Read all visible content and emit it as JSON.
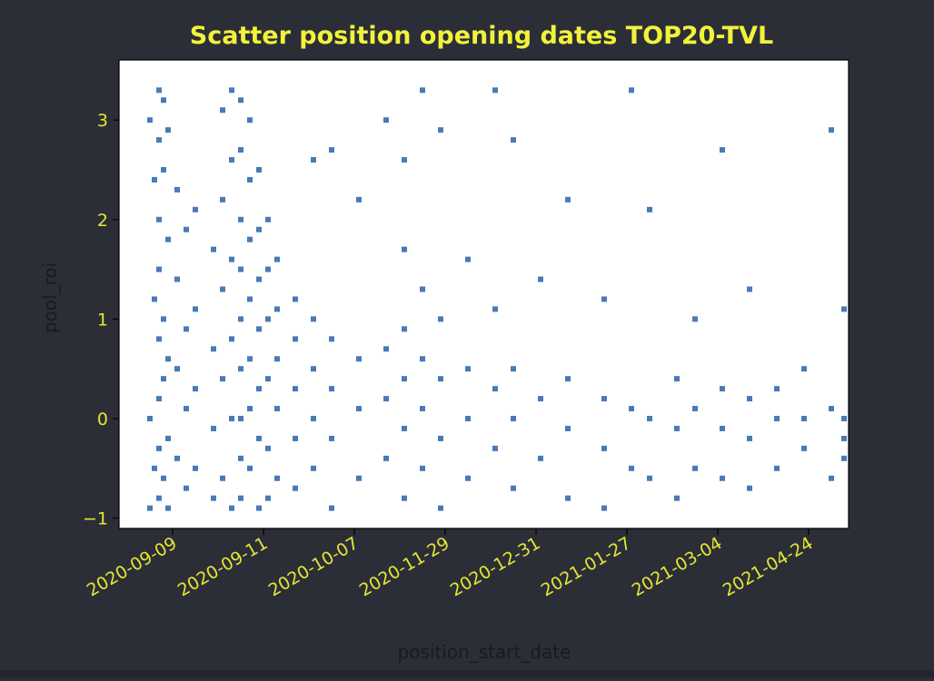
{
  "chart_data": {
    "type": "scatter",
    "title": "Scatter position opening dates TOP20-TVL",
    "xlabel": "position_start_date",
    "ylabel": "pool_roi",
    "ylim": [
      -1.1,
      3.45
    ],
    "yticks": [
      -1,
      0,
      1,
      2,
      3
    ],
    "x_tick_labels": [
      "2020-09-09",
      "2020-09-11",
      "2020-10-07",
      "2020-11-29",
      "2020-12-31",
      "2021-01-27",
      "2021-03-04",
      "2021-04-24"
    ],
    "x_scale": "categorical date ticks (irregular spacing)",
    "grid": false,
    "legend": "none",
    "marker": "square",
    "colors": {
      "background": "#2b2e37",
      "plot_area": "#ffffff",
      "points": "#4a7ab5",
      "title": "#f2f23a",
      "tick_labels": "#e6e632",
      "axis_labels": "#1a1a1a"
    },
    "points": [
      [
        0.0,
        0.0
      ],
      [
        0.0,
        3.0
      ],
      [
        0.0,
        -0.9
      ],
      [
        0.05,
        2.4
      ],
      [
        0.05,
        1.2
      ],
      [
        0.05,
        -0.5
      ],
      [
        0.1,
        3.3
      ],
      [
        0.1,
        2.8
      ],
      [
        0.1,
        2.0
      ],
      [
        0.1,
        1.5
      ],
      [
        0.1,
        0.8
      ],
      [
        0.1,
        0.2
      ],
      [
        0.1,
        -0.3
      ],
      [
        0.1,
        -0.8
      ],
      [
        0.15,
        3.2
      ],
      [
        0.15,
        2.5
      ],
      [
        0.15,
        1.0
      ],
      [
        0.15,
        0.4
      ],
      [
        0.15,
        -0.6
      ],
      [
        0.2,
        2.9
      ],
      [
        0.2,
        1.8
      ],
      [
        0.2,
        0.6
      ],
      [
        0.2,
        -0.2
      ],
      [
        0.2,
        -0.9
      ],
      [
        0.3,
        2.3
      ],
      [
        0.3,
        1.4
      ],
      [
        0.3,
        0.5
      ],
      [
        0.3,
        -0.4
      ],
      [
        0.4,
        1.9
      ],
      [
        0.4,
        0.9
      ],
      [
        0.4,
        0.1
      ],
      [
        0.4,
        -0.7
      ],
      [
        0.5,
        2.1
      ],
      [
        0.5,
        1.1
      ],
      [
        0.5,
        0.3
      ],
      [
        0.5,
        -0.5
      ],
      [
        0.7,
        1.7
      ],
      [
        0.7,
        0.7
      ],
      [
        0.7,
        -0.1
      ],
      [
        0.7,
        -0.8
      ],
      [
        0.8,
        3.1
      ],
      [
        0.8,
        2.2
      ],
      [
        0.8,
        1.3
      ],
      [
        0.8,
        0.4
      ],
      [
        0.8,
        -0.6
      ],
      [
        0.9,
        3.3
      ],
      [
        0.9,
        2.6
      ],
      [
        0.9,
        1.6
      ],
      [
        0.9,
        0.8
      ],
      [
        0.9,
        0.0
      ],
      [
        0.9,
        -0.9
      ],
      [
        1.0,
        3.2
      ],
      [
        1.0,
        2.7
      ],
      [
        1.0,
        2.0
      ],
      [
        1.0,
        1.5
      ],
      [
        1.0,
        1.0
      ],
      [
        1.0,
        0.5
      ],
      [
        1.0,
        0.0
      ],
      [
        1.0,
        -0.4
      ],
      [
        1.0,
        -0.8
      ],
      [
        1.1,
        3.0
      ],
      [
        1.1,
        2.4
      ],
      [
        1.1,
        1.8
      ],
      [
        1.1,
        1.2
      ],
      [
        1.1,
        0.6
      ],
      [
        1.1,
        0.1
      ],
      [
        1.1,
        -0.5
      ],
      [
        1.2,
        2.5
      ],
      [
        1.2,
        1.9
      ],
      [
        1.2,
        1.4
      ],
      [
        1.2,
        0.9
      ],
      [
        1.2,
        0.3
      ],
      [
        1.2,
        -0.2
      ],
      [
        1.2,
        -0.9
      ],
      [
        1.3,
        2.0
      ],
      [
        1.3,
        1.5
      ],
      [
        1.3,
        1.0
      ],
      [
        1.3,
        0.4
      ],
      [
        1.3,
        -0.3
      ],
      [
        1.3,
        -0.8
      ],
      [
        1.4,
        1.6
      ],
      [
        1.4,
        1.1
      ],
      [
        1.4,
        0.6
      ],
      [
        1.4,
        0.1
      ],
      [
        1.4,
        -0.6
      ],
      [
        1.6,
        1.2
      ],
      [
        1.6,
        0.8
      ],
      [
        1.6,
        0.3
      ],
      [
        1.6,
        -0.2
      ],
      [
        1.6,
        -0.7
      ],
      [
        1.8,
        2.6
      ],
      [
        1.8,
        1.0
      ],
      [
        1.8,
        0.5
      ],
      [
        1.8,
        0.0
      ],
      [
        1.8,
        -0.5
      ],
      [
        2.0,
        2.7
      ],
      [
        2.0,
        0.8
      ],
      [
        2.0,
        0.3
      ],
      [
        2.0,
        -0.2
      ],
      [
        2.0,
        -0.9
      ],
      [
        2.3,
        2.2
      ],
      [
        2.3,
        0.6
      ],
      [
        2.3,
        0.1
      ],
      [
        2.3,
        -0.6
      ],
      [
        2.6,
        3.0
      ],
      [
        2.6,
        0.7
      ],
      [
        2.6,
        0.2
      ],
      [
        2.6,
        -0.4
      ],
      [
        2.8,
        2.6
      ],
      [
        2.8,
        1.7
      ],
      [
        2.8,
        0.9
      ],
      [
        2.8,
        0.4
      ],
      [
        2.8,
        -0.1
      ],
      [
        2.8,
        -0.8
      ],
      [
        3.0,
        3.3
      ],
      [
        3.0,
        1.3
      ],
      [
        3.0,
        0.6
      ],
      [
        3.0,
        0.1
      ],
      [
        3.0,
        -0.5
      ],
      [
        3.2,
        2.9
      ],
      [
        3.2,
        1.0
      ],
      [
        3.2,
        0.4
      ],
      [
        3.2,
        -0.2
      ],
      [
        3.2,
        -0.9
      ],
      [
        3.5,
        1.6
      ],
      [
        3.5,
        0.5
      ],
      [
        3.5,
        0.0
      ],
      [
        3.5,
        -0.6
      ],
      [
        3.8,
        3.3
      ],
      [
        3.8,
        1.1
      ],
      [
        3.8,
        0.3
      ],
      [
        3.8,
        -0.3
      ],
      [
        4.0,
        2.8
      ],
      [
        4.0,
        0.5
      ],
      [
        4.0,
        0.0
      ],
      [
        4.0,
        -0.7
      ],
      [
        4.3,
        1.4
      ],
      [
        4.3,
        0.2
      ],
      [
        4.3,
        -0.4
      ],
      [
        4.6,
        2.2
      ],
      [
        4.6,
        0.4
      ],
      [
        4.6,
        -0.1
      ],
      [
        4.6,
        -0.8
      ],
      [
        5.0,
        1.2
      ],
      [
        5.0,
        0.2
      ],
      [
        5.0,
        -0.3
      ],
      [
        5.0,
        -0.9
      ],
      [
        5.3,
        3.3
      ],
      [
        5.3,
        0.1
      ],
      [
        5.3,
        -0.5
      ],
      [
        5.5,
        2.1
      ],
      [
        5.5,
        0.0
      ],
      [
        5.5,
        -0.6
      ],
      [
        5.8,
        0.4
      ],
      [
        5.8,
        -0.1
      ],
      [
        5.8,
        -0.8
      ],
      [
        6.0,
        1.0
      ],
      [
        6.0,
        0.1
      ],
      [
        6.0,
        -0.5
      ],
      [
        6.3,
        2.7
      ],
      [
        6.3,
        0.3
      ],
      [
        6.3,
        -0.1
      ],
      [
        6.3,
        -0.6
      ],
      [
        6.6,
        1.3
      ],
      [
        6.6,
        0.2
      ],
      [
        6.6,
        -0.2
      ],
      [
        6.6,
        -0.7
      ],
      [
        6.9,
        0.3
      ],
      [
        6.9,
        0.0
      ],
      [
        6.9,
        -0.5
      ],
      [
        7.2,
        0.5
      ],
      [
        7.2,
        0.0
      ],
      [
        7.2,
        -0.3
      ],
      [
        7.5,
        2.9
      ],
      [
        7.5,
        0.1
      ],
      [
        7.5,
        -0.6
      ],
      [
        7.8,
        0.0
      ],
      [
        7.8,
        -0.2
      ],
      [
        8.0,
        1.1
      ],
      [
        8.0,
        0.0
      ],
      [
        8.0,
        -0.4
      ]
    ]
  }
}
